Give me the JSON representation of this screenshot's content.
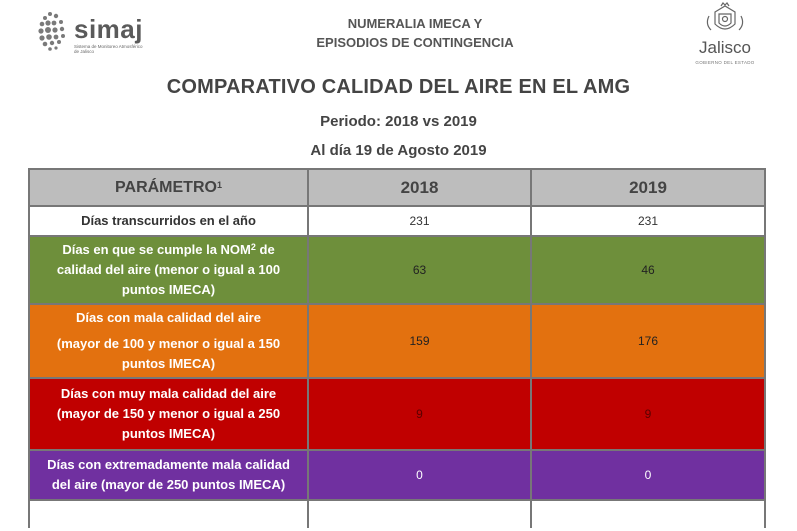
{
  "header": {
    "simaj_logo": {
      "word": "simaj",
      "tagline": "Sistema de Monitoreo Atmosférico de Jalisco",
      "icon": "swirl-dots-icon"
    },
    "title_line1": "NUMERALIA IMECA Y",
    "title_line2": "EPISODIOS DE CONTINGENCIA",
    "jalisco_logo": {
      "word": "Jalisco",
      "tagline": "GOBIERNO DEL ESTADO",
      "icon": "coat-of-arms-icon"
    }
  },
  "main_title": "COMPARATIVO CALIDAD DEL AIRE EN EL AMG",
  "period": "Periodo: 2018 vs 2019",
  "date": "Al día 19 de Agosto 2019",
  "table": {
    "headers": {
      "parameter": "PARÁMETRO",
      "parameter_sup": "1",
      "col1": "2018",
      "col2": "2019"
    },
    "rows": [
      {
        "label": "Días transcurridos en el año",
        "v2018": "231",
        "v2019": "231",
        "color": "#ffffff"
      },
      {
        "label_a": "Días en que se cumple la NOM",
        "label_sup": "2",
        "label_b": " de calidad del aire (menor o igual a 100 puntos IMECA)",
        "v2018": "63",
        "v2019": "46",
        "color": "#6e8f3b"
      },
      {
        "label_a": "Días con mala calidad del aire",
        "label_b": "(mayor de 100 y menor o igual a 150 puntos IMECA)",
        "v2018": "159",
        "v2019": "176",
        "color": "#e3710f"
      },
      {
        "label_a": "Días con muy mala calidad del aire",
        "label_b": "(mayor de 150 y menor o igual a 250 puntos IMECA)",
        "v2018": "9",
        "v2019": "9",
        "color": "#c00000"
      },
      {
        "label": "Días con extremadamente mala calidad del aire (mayor de 250 puntos IMECA)",
        "v2018": "0",
        "v2019": "0",
        "color": "#7030a0"
      }
    ]
  }
}
